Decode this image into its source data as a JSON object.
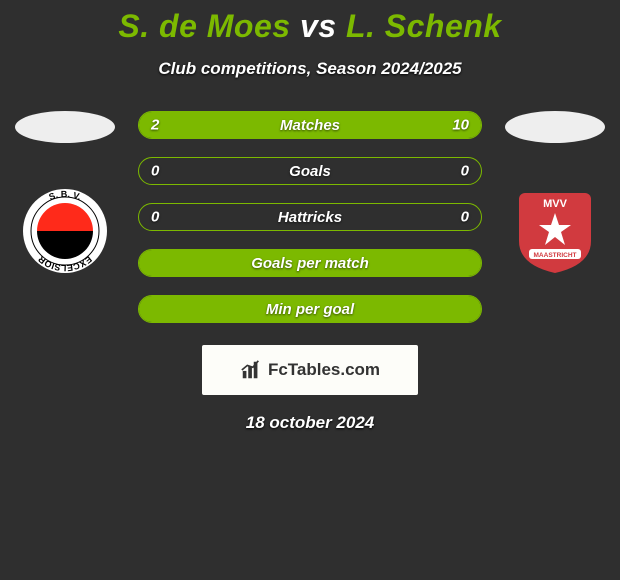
{
  "title": {
    "left": "S. de Moes",
    "vs": "vs",
    "right": "L. Schenk",
    "fontsize": 32,
    "accent_color": "#7cb900",
    "text_color": "#ffffff"
  },
  "subtitle": "Club competitions, Season 2024/2025",
  "palette": {
    "background": "#2f2f2f",
    "bar_border": "#7cb900",
    "bar_fill": "#7cb900",
    "text": "#ffffff"
  },
  "left_team": {
    "flag_oval_color": "#eeeeee",
    "badge": {
      "ring_color": "#ffffff",
      "top_color": "#ff2a1a",
      "bottom_color": "#000000",
      "text_top": "S. B. V.",
      "text_bottom": "EXCELSIOR"
    }
  },
  "right_team": {
    "flag_oval_color": "#eeeeee",
    "badge": {
      "bg_color": "#d13a3f",
      "star_color": "#ffffff",
      "text_top": "MVV",
      "ribbon_text": "MAASTRICHT"
    }
  },
  "bars": [
    {
      "label": "Matches",
      "left": "2",
      "right": "10",
      "left_pct": 16,
      "right_pct": 84
    },
    {
      "label": "Goals",
      "left": "0",
      "right": "0",
      "left_pct": 0,
      "right_pct": 0
    },
    {
      "label": "Hattricks",
      "left": "0",
      "right": "0",
      "left_pct": 0,
      "right_pct": 0
    },
    {
      "label": "Goals per match",
      "left": "",
      "right": "",
      "left_pct": 100,
      "right_pct": 0,
      "full": true
    },
    {
      "label": "Min per goal",
      "left": "",
      "right": "",
      "left_pct": 100,
      "right_pct": 0,
      "full": true
    }
  ],
  "footer_logo": {
    "text": "FcTables.com"
  },
  "date": "18 october 2024"
}
